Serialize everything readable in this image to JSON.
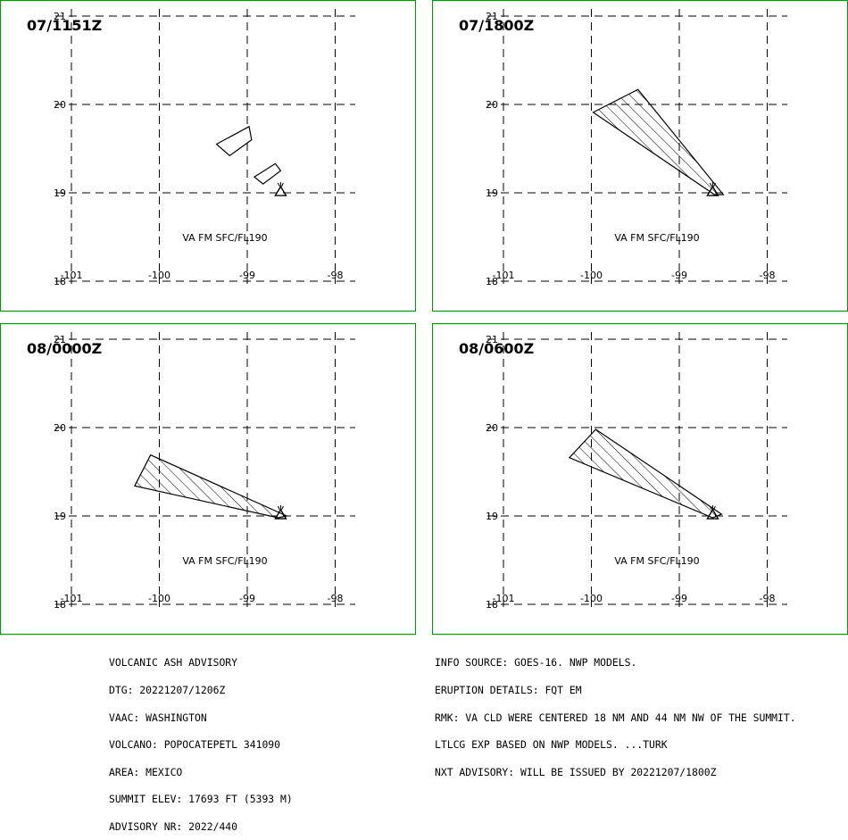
{
  "panels": [
    {
      "time": "07/1151Z",
      "level": "VA FM SFC/FL190",
      "ash_areas": [
        [
          [
            -99.35,
            19.55
          ],
          [
            -98.98,
            19.75
          ],
          [
            -98.95,
            19.6
          ],
          [
            -99.2,
            19.42
          ]
        ],
        [
          [
            -98.92,
            19.18
          ],
          [
            -98.68,
            19.33
          ],
          [
            -98.62,
            19.25
          ],
          [
            -98.82,
            19.1
          ]
        ]
      ],
      "hatched": false
    },
    {
      "time": "07/1800Z",
      "level": "VA FM SFC/FL190",
      "ash_areas": [
        [
          [
            -99.98,
            19.91
          ],
          [
            -99.47,
            20.17
          ],
          [
            -98.5,
            18.98
          ],
          [
            -98.6,
            18.98
          ]
        ]
      ],
      "hatched": true
    },
    {
      "time": "08/0000Z",
      "level": "VA FM SFC/FL190",
      "ash_areas": [
        [
          [
            -100.28,
            19.34
          ],
          [
            -100.1,
            19.69
          ],
          [
            -98.55,
            19.0
          ],
          [
            -98.65,
            18.98
          ]
        ]
      ],
      "hatched": true
    },
    {
      "time": "08/0600Z",
      "level": "VA FM SFC/FL190",
      "ash_areas": [
        [
          [
            -100.25,
            19.66
          ],
          [
            -99.95,
            19.98
          ],
          [
            -98.52,
            19.02
          ],
          [
            -98.62,
            18.98
          ]
        ]
      ],
      "hatched": true
    }
  ],
  "map": {
    "lon_ticks": [
      "-101",
      "-100",
      "-99",
      "-98"
    ],
    "lat_ticks": [
      "21",
      "20",
      "19",
      "18"
    ],
    "lon_values": [
      -101,
      -100,
      -99,
      -98
    ],
    "lat_values": [
      21,
      20,
      19,
      18
    ],
    "volcano": {
      "lon": -98.62,
      "lat": 19.02
    }
  },
  "advisory_left": [
    "VOLCANIC ASH ADVISORY",
    "DTG: 20221207/1206Z",
    "VAAC: WASHINGTON",
    "VOLCANO: POPOCATEPETL 341090",
    "AREA: MEXICO",
    "SUMMIT ELEV: 17693 FT (5393 M)",
    "ADVISORY NR: 2022/440"
  ],
  "advisory_right": [
    "INFO SOURCE: GOES-16. NWP MODELS.",
    "ERUPTION DETAILS: FQT EM",
    "RMK: VA CLD WERE CENTERED 18 NM AND 44 NM NW OF THE SUMMIT.",
    "LTLCG EXP BASED ON NWP MODELS. ...TURK",
    "NXT ADVISORY: WILL BE ISSUED BY 20221207/1800Z"
  ],
  "colors": {
    "frame": "#1a8a1a",
    "grid": "#000000",
    "ink": "#000000"
  }
}
